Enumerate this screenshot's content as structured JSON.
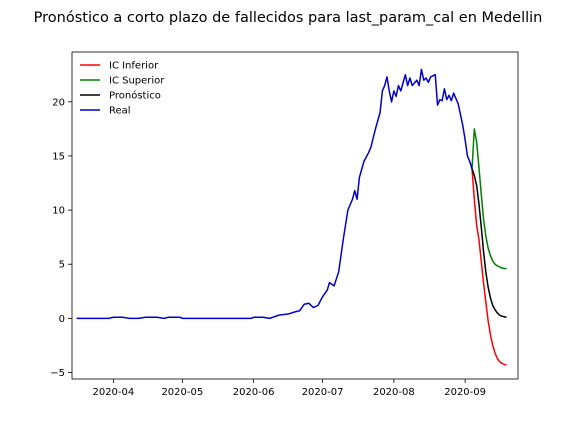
{
  "chart_data": {
    "type": "line",
    "title": "Pronóstico a corto plazo de fallecidos para last_param_cal en Medellin",
    "xlabel": "",
    "ylabel": "",
    "xlim": [
      "2020-03-14",
      "2020-09-24"
    ],
    "ylim": [
      -5.6,
      24.6
    ],
    "x_ticks": [
      "2020-04-01",
      "2020-05-01",
      "2020-06-01",
      "2020-07-01",
      "2020-08-01",
      "2020-09-01"
    ],
    "x_tick_labels": [
      "2020-04",
      "2020-05",
      "2020-06",
      "2020-07",
      "2020-08",
      "2020-09"
    ],
    "y_ticks": [
      -5,
      0,
      5,
      10,
      15,
      20
    ],
    "y_tick_labels": [
      "−5",
      "0",
      "5",
      "10",
      "15",
      "20"
    ],
    "grid": false,
    "legend_position": "top-left",
    "series": [
      {
        "name": "IC Inferior",
        "color": "#ff0000",
        "points": [
          [
            "2020-09-04",
            13.8
          ],
          [
            "2020-09-05",
            11
          ],
          [
            "2020-09-06",
            8.6
          ],
          [
            "2020-09-07",
            7.3
          ],
          [
            "2020-09-08",
            5.3
          ],
          [
            "2020-09-09",
            3.3
          ],
          [
            "2020-09-10",
            1.5
          ],
          [
            "2020-09-11",
            -0.2
          ],
          [
            "2020-09-12",
            -1.5
          ],
          [
            "2020-09-13",
            -2.5
          ],
          [
            "2020-09-14",
            -3.2
          ],
          [
            "2020-09-15",
            -3.7
          ],
          [
            "2020-09-16",
            -4
          ],
          [
            "2020-09-17",
            -4.15
          ],
          [
            "2020-09-18",
            -4.25
          ],
          [
            "2020-09-19",
            -4.3
          ]
        ]
      },
      {
        "name": "IC Superior",
        "color": "#008000",
        "points": [
          [
            "2020-09-04",
            13.8
          ],
          [
            "2020-09-05",
            17.5
          ],
          [
            "2020-09-06",
            16.3
          ],
          [
            "2020-09-07",
            14
          ],
          [
            "2020-09-08",
            11.5
          ],
          [
            "2020-09-09",
            9.2
          ],
          [
            "2020-09-10",
            7.6
          ],
          [
            "2020-09-11",
            6.5
          ],
          [
            "2020-09-12",
            5.8
          ],
          [
            "2020-09-13",
            5.3
          ],
          [
            "2020-09-14",
            5
          ],
          [
            "2020-09-15",
            4.85
          ],
          [
            "2020-09-16",
            4.75
          ],
          [
            "2020-09-17",
            4.65
          ],
          [
            "2020-09-18",
            4.6
          ],
          [
            "2020-09-19",
            4.6
          ]
        ]
      },
      {
        "name": "Pronóstico",
        "color": "#000000",
        "points": [
          [
            "2020-09-04",
            13.8
          ],
          [
            "2020-09-05",
            13.2
          ],
          [
            "2020-09-06",
            12.3
          ],
          [
            "2020-09-07",
            10.6
          ],
          [
            "2020-09-08",
            8.5
          ],
          [
            "2020-09-09",
            6.2
          ],
          [
            "2020-09-10",
            4.3
          ],
          [
            "2020-09-11",
            2.9
          ],
          [
            "2020-09-12",
            1.9
          ],
          [
            "2020-09-13",
            1.2
          ],
          [
            "2020-09-14",
            0.8
          ],
          [
            "2020-09-15",
            0.5
          ],
          [
            "2020-09-16",
            0.3
          ],
          [
            "2020-09-17",
            0.2
          ],
          [
            "2020-09-18",
            0.15
          ],
          [
            "2020-09-19",
            0.1
          ]
        ]
      },
      {
        "name": "Real",
        "color": "#0000cc",
        "points": [
          [
            "2020-03-16",
            0
          ],
          [
            "2020-03-20",
            0
          ],
          [
            "2020-03-25",
            0
          ],
          [
            "2020-03-30",
            0
          ],
          [
            "2020-04-01",
            0.1
          ],
          [
            "2020-04-05",
            0.1
          ],
          [
            "2020-04-08",
            0
          ],
          [
            "2020-04-12",
            0
          ],
          [
            "2020-04-15",
            0.1
          ],
          [
            "2020-04-20",
            0.1
          ],
          [
            "2020-04-23",
            0
          ],
          [
            "2020-04-25",
            0.1
          ],
          [
            "2020-04-30",
            0.1
          ],
          [
            "2020-05-01",
            0
          ],
          [
            "2020-05-10",
            0
          ],
          [
            "2020-05-20",
            0
          ],
          [
            "2020-05-31",
            0
          ],
          [
            "2020-06-01",
            0.1
          ],
          [
            "2020-06-05",
            0.1
          ],
          [
            "2020-06-08",
            0
          ],
          [
            "2020-06-12",
            0.3
          ],
          [
            "2020-06-16",
            0.4
          ],
          [
            "2020-06-19",
            0.6
          ],
          [
            "2020-06-21",
            0.7
          ],
          [
            "2020-06-23",
            1.3
          ],
          [
            "2020-06-25",
            1.4
          ],
          [
            "2020-06-27",
            1
          ],
          [
            "2020-06-29",
            1.2
          ],
          [
            "2020-07-01",
            2
          ],
          [
            "2020-07-03",
            2.6
          ],
          [
            "2020-07-04",
            3.3
          ],
          [
            "2020-07-06",
            3
          ],
          [
            "2020-07-08",
            4.3
          ],
          [
            "2020-07-10",
            7.3
          ],
          [
            "2020-07-12",
            10
          ],
          [
            "2020-07-14",
            11
          ],
          [
            "2020-07-15",
            11.8
          ],
          [
            "2020-07-16",
            11
          ],
          [
            "2020-07-17",
            13
          ],
          [
            "2020-07-19",
            14.5
          ],
          [
            "2020-07-21",
            15.3
          ],
          [
            "2020-07-22",
            15.8
          ],
          [
            "2020-07-24",
            17.5
          ],
          [
            "2020-07-26",
            19
          ],
          [
            "2020-07-27",
            21
          ],
          [
            "2020-07-28",
            21.5
          ],
          [
            "2020-07-29",
            22.3
          ],
          [
            "2020-07-30",
            21
          ],
          [
            "2020-07-31",
            20
          ],
          [
            "2020-08-01",
            21
          ],
          [
            "2020-08-02",
            20.5
          ],
          [
            "2020-08-03",
            21.5
          ],
          [
            "2020-08-04",
            21
          ],
          [
            "2020-08-06",
            22.5
          ],
          [
            "2020-08-07",
            21.5
          ],
          [
            "2020-08-08",
            22.2
          ],
          [
            "2020-08-09",
            21.5
          ],
          [
            "2020-08-11",
            22
          ],
          [
            "2020-08-12",
            21.5
          ],
          [
            "2020-08-13",
            23
          ],
          [
            "2020-08-14",
            22
          ],
          [
            "2020-08-15",
            22.2
          ],
          [
            "2020-08-16",
            21.8
          ],
          [
            "2020-08-17",
            22.3
          ],
          [
            "2020-08-19",
            22.5
          ],
          [
            "2020-08-20",
            19.7
          ],
          [
            "2020-08-21",
            20.2
          ],
          [
            "2020-08-22",
            20.1
          ],
          [
            "2020-08-23",
            21.2
          ],
          [
            "2020-08-24",
            20.2
          ],
          [
            "2020-08-25",
            20.6
          ],
          [
            "2020-08-26",
            20.1
          ],
          [
            "2020-08-27",
            20.8
          ],
          [
            "2020-08-28",
            20.3
          ],
          [
            "2020-08-29",
            19.8
          ],
          [
            "2020-08-30",
            18.8
          ],
          [
            "2020-08-31",
            17.8
          ],
          [
            "2020-09-01",
            16.5
          ],
          [
            "2020-09-02",
            15
          ],
          [
            "2020-09-03",
            14.5
          ],
          [
            "2020-09-04",
            13.8
          ]
        ]
      }
    ]
  }
}
